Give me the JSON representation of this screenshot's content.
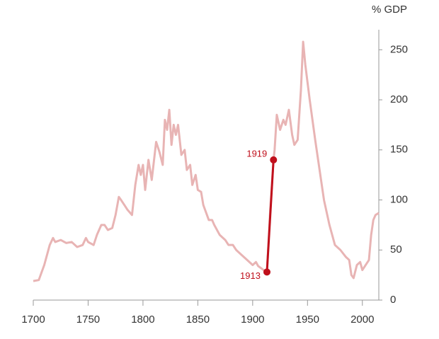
{
  "chart_data": {
    "type": "line",
    "y_label": "% GDP",
    "xlim": [
      1700,
      2015
    ],
    "xticks": [
      1700,
      1750,
      1800,
      1850,
      1900,
      1950,
      2000
    ],
    "ylim": [
      0,
      270
    ],
    "yticks": [
      0,
      50,
      100,
      150,
      200,
      250
    ],
    "y_axis_side": "right",
    "series": [
      {
        "color": "#e8b4b4",
        "width": 3,
        "x": [
          1700,
          1705,
          1710,
          1715,
          1718,
          1720,
          1725,
          1730,
          1735,
          1740,
          1745,
          1748,
          1750,
          1755,
          1758,
          1762,
          1765,
          1768,
          1772,
          1775,
          1778,
          1780,
          1783,
          1786,
          1790,
          1793,
          1796,
          1798,
          1800,
          1802,
          1805,
          1808,
          1812,
          1815,
          1818,
          1820,
          1822,
          1824,
          1826,
          1828,
          1830,
          1832,
          1835,
          1838,
          1840,
          1843,
          1845,
          1848,
          1850,
          1853,
          1855,
          1860,
          1863,
          1865,
          1870,
          1875,
          1878,
          1882,
          1885,
          1890,
          1895,
          1900,
          1903,
          1905,
          1910,
          1913,
          1916,
          1919,
          1920,
          1922,
          1925,
          1928,
          1930,
          1933,
          1936,
          1938,
          1941,
          1944,
          1946,
          1948,
          1952,
          1957,
          1961,
          1965,
          1970,
          1975,
          1980,
          1985,
          1988,
          1990,
          1992,
          1995,
          1998,
          2000,
          2003,
          2006,
          2008,
          2010,
          2012,
          2015
        ],
        "values": [
          19,
          20,
          35,
          55,
          62,
          58,
          60,
          57,
          58,
          53,
          55,
          62,
          58,
          55,
          65,
          75,
          75,
          70,
          72,
          85,
          103,
          100,
          95,
          90,
          85,
          115,
          135,
          125,
          135,
          110,
          140,
          120,
          158,
          148,
          135,
          180,
          170,
          190,
          155,
          175,
          165,
          175,
          145,
          150,
          130,
          135,
          115,
          125,
          110,
          108,
          95,
          80,
          80,
          75,
          65,
          60,
          55,
          55,
          50,
          45,
          40,
          35,
          38,
          34,
          30,
          28,
          90,
          140,
          150,
          185,
          170,
          180,
          175,
          190,
          165,
          155,
          160,
          210,
          258,
          235,
          200,
          160,
          130,
          100,
          75,
          55,
          50,
          43,
          40,
          25,
          22,
          35,
          38,
          30,
          35,
          40,
          65,
          80,
          85,
          87
        ]
      },
      {
        "color": "#c0101c",
        "width": 3,
        "marker": true,
        "x": [
          1913,
          1919
        ],
        "values": [
          28,
          140
        ]
      }
    ]
  }
}
